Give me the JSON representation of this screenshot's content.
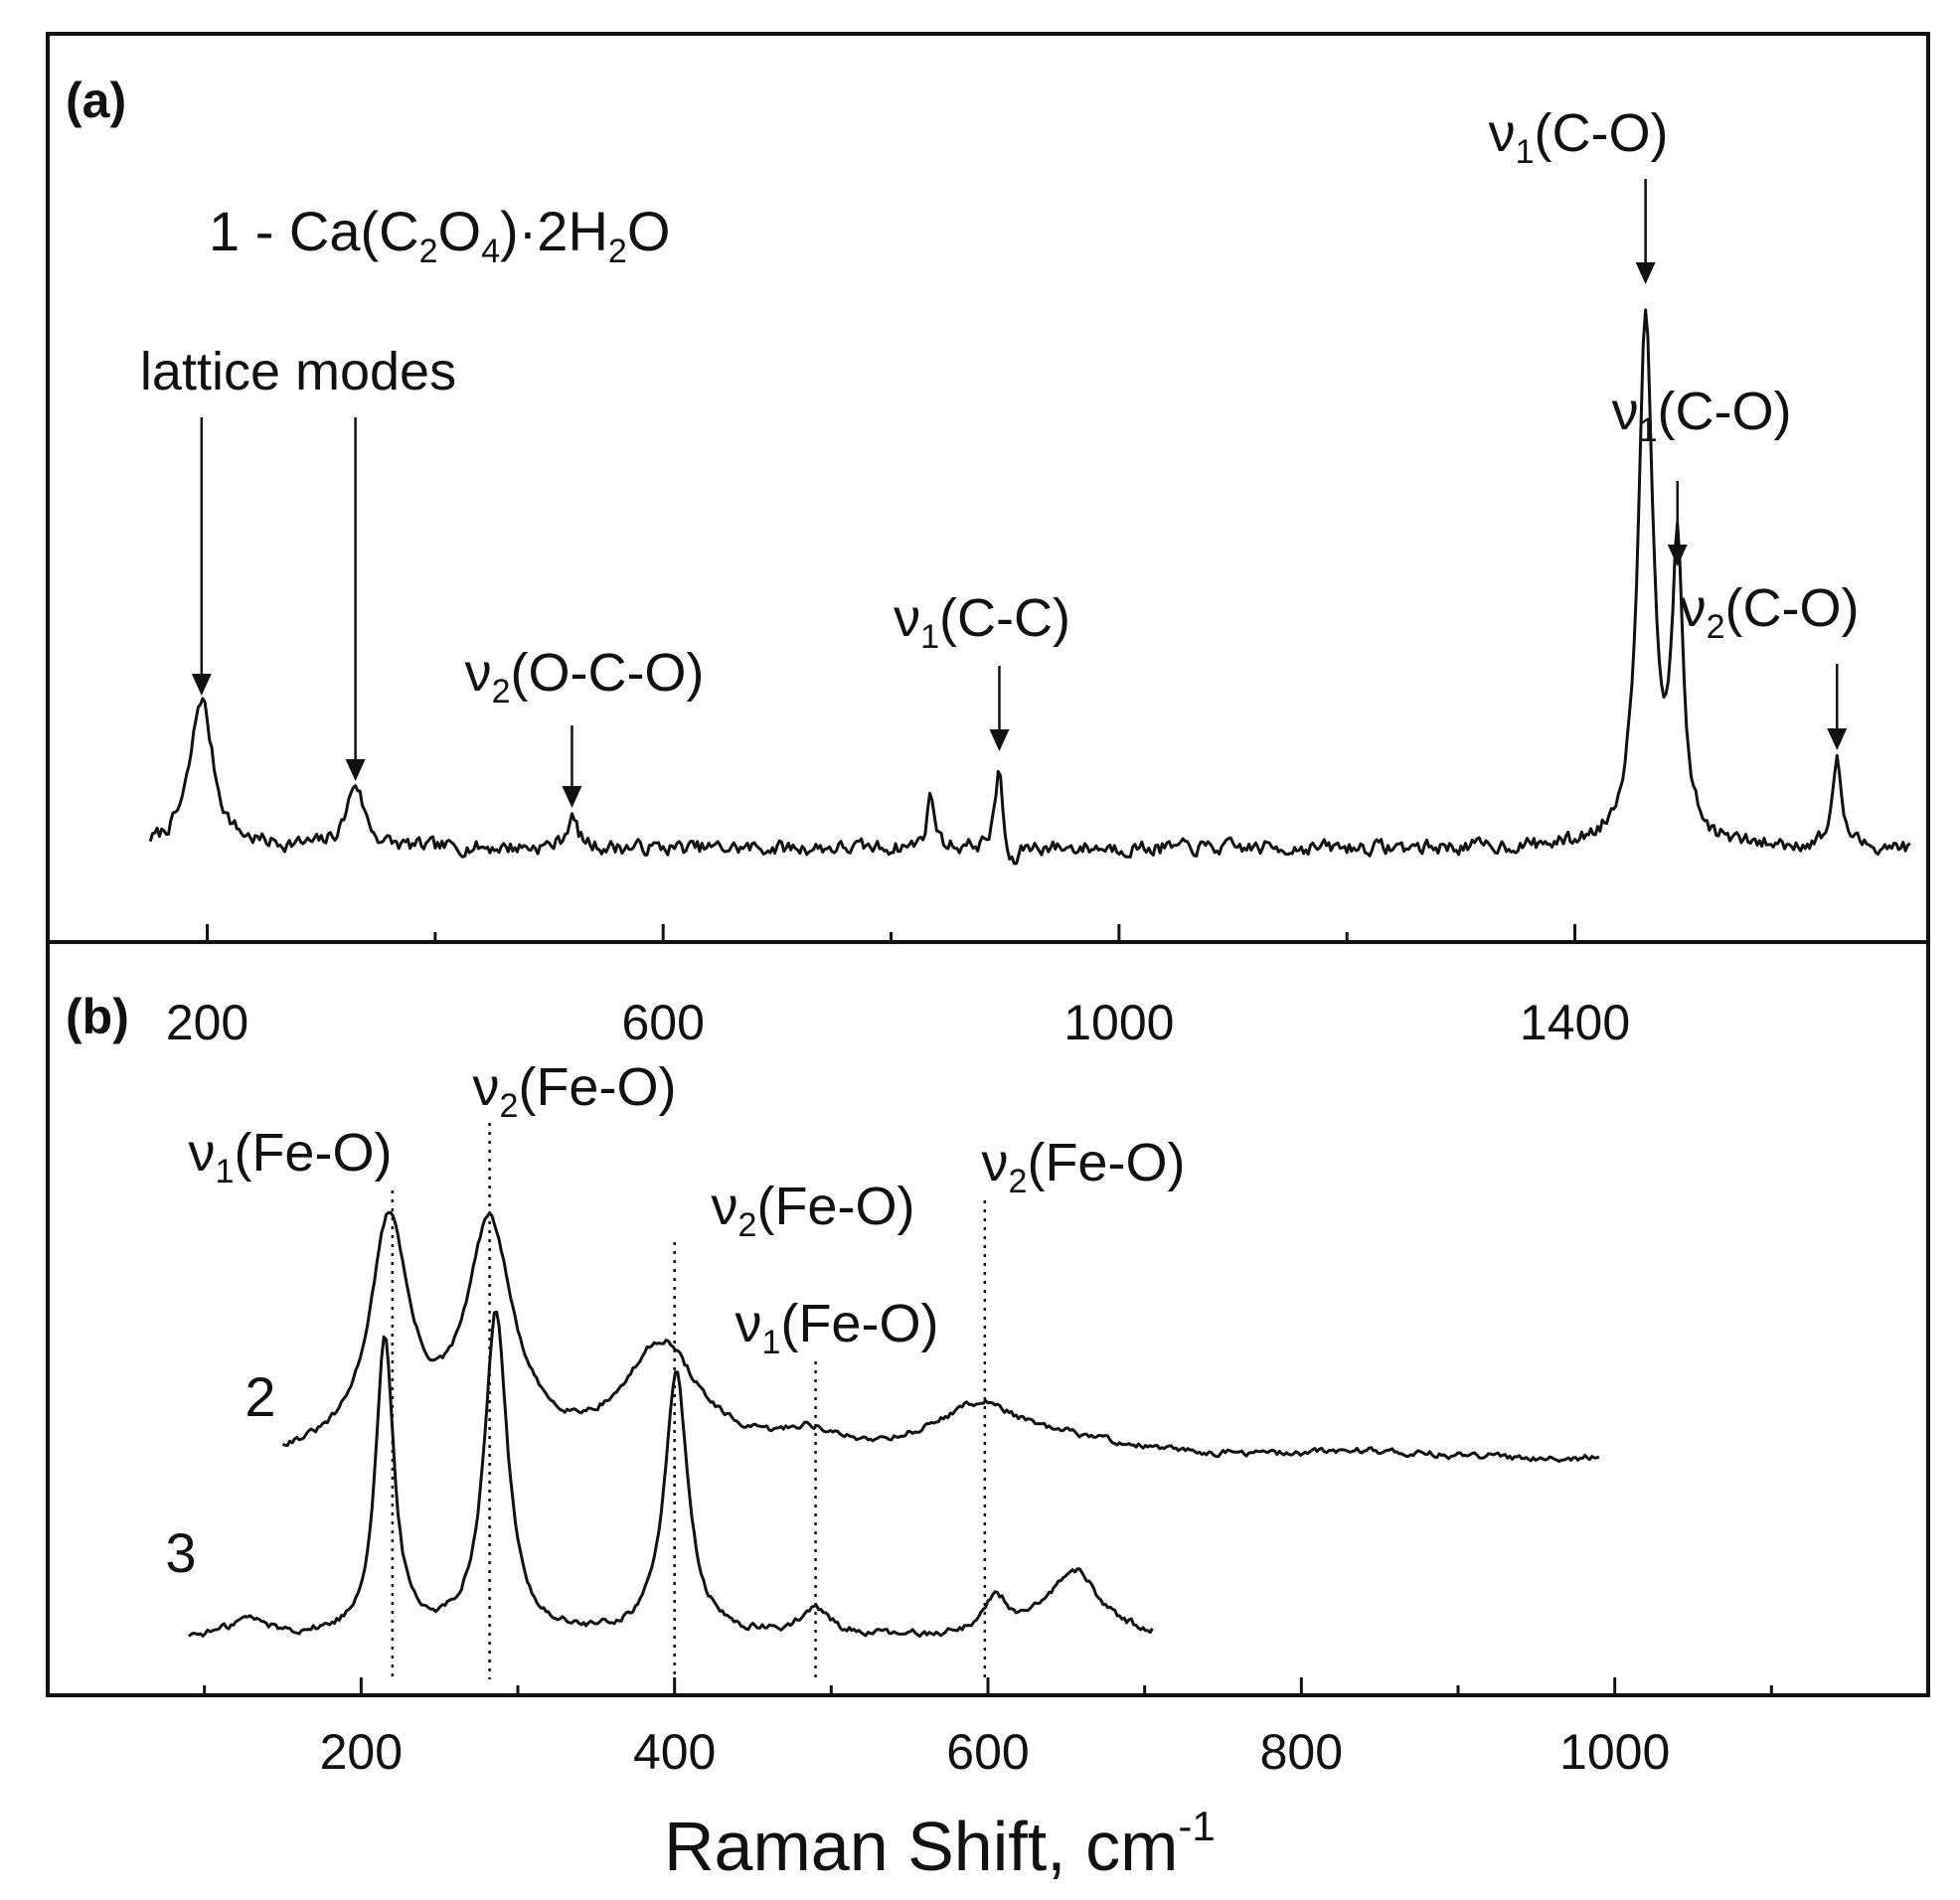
{
  "chart_data": [
    {
      "type": "line",
      "panel_label": "(a)",
      "sample_label": "1 - Ca(C2O4)·2H2O",
      "sample_label_parts": {
        "prefix": "1 - Ca(C",
        "sub1": "2",
        "mid": "O",
        "sub2": "4",
        "mid2": ")·2H",
        "sub3": "2",
        "suffix": "O"
      },
      "xlim": [
        60,
        1710
      ],
      "x_ticks_major": [
        200,
        600,
        1000,
        1400
      ],
      "x_ticks_minor": [
        400,
        800,
        1200
      ],
      "xlabel": "",
      "ylabel": "",
      "grid": false,
      "series": [
        {
          "baseline": 0.1,
          "noise": 0.03,
          "x_range": [
            150,
            1695
          ],
          "peaks": [
            {
              "x": 195,
              "height": 0.7,
              "width": 12
            },
            {
              "x": 330,
              "height": 0.3,
              "width": 9
            },
            {
              "x": 520,
              "height": 0.14,
              "width": 6
            },
            {
              "x": 835,
              "height": 0.25,
              "width": 4
            },
            {
              "x": 895,
              "height": 0.38,
              "width": 4
            },
            {
              "x": 1462,
              "height": 2.45,
              "width": 8
            },
            {
              "x": 1490,
              "height": 1.3,
              "width": 6
            },
            {
              "x": 1630,
              "height": 0.4,
              "width": 5
            }
          ]
        }
      ],
      "annotations": [
        {
          "base": "lattice modes",
          "sub": "",
          "tail": ""
        },
        {
          "base": "ν",
          "sub": "2",
          "tail": "(O-C-O)"
        },
        {
          "base": "ν",
          "sub": "1",
          "tail": "(C-C)"
        },
        {
          "base": "ν",
          "sub": "1",
          "tail": "(C-O)"
        },
        {
          "base": "ν",
          "sub": "1",
          "tail": "(C-O)"
        },
        {
          "base": "ν",
          "sub": "2",
          "tail": "(C-O)"
        }
      ]
    },
    {
      "type": "line",
      "panel_label": "(b)",
      "xlim": [
        0,
        1200
      ],
      "x_ticks_major": [
        200,
        400,
        600,
        800,
        1000
      ],
      "x_ticks_minor": [
        0,
        100,
        300,
        500,
        700,
        900,
        1100,
        1200
      ],
      "xlabel": "Raman Shift, cm",
      "xlabel_sup": "-1",
      "ylabel": "",
      "grid": false,
      "series": [
        {
          "name": "2",
          "baseline": 0.05,
          "noise": 0.012,
          "x_range": [
            150,
            990
          ],
          "peaks": [
            {
              "x": 218,
              "height": 1.0,
              "width": 15
            },
            {
              "x": 282,
              "height": 0.98,
              "width": 18
            },
            {
              "x": 392,
              "height": 0.48,
              "width": 28
            },
            {
              "x": 485,
              "height": 0.08,
              "width": 20
            },
            {
              "x": 595,
              "height": 0.22,
              "width": 35
            },
            {
              "x": 660,
              "height": 0.05,
              "width": 40
            },
            {
              "x": 840,
              "height": 0.03,
              "width": 40
            }
          ]
        },
        {
          "name": "3",
          "baseline": 0.06,
          "noise": 0.012,
          "x_range": [
            90,
            705
          ],
          "peaks": [
            {
              "x": 128,
              "height": 0.07,
              "width": 15
            },
            {
              "x": 215,
              "height": 1.15,
              "width": 7
            },
            {
              "x": 286,
              "height": 1.25,
              "width": 9
            },
            {
              "x": 401,
              "height": 1.02,
              "width": 9
            },
            {
              "x": 490,
              "height": 0.1,
              "width": 12
            },
            {
              "x": 605,
              "height": 0.14,
              "width": 9
            },
            {
              "x": 655,
              "height": 0.26,
              "width": 20
            }
          ]
        }
      ],
      "annotations": [
        {
          "base": "ν",
          "sub": "1",
          "tail": "(Fe-O)"
        },
        {
          "base": "ν",
          "sub": "2",
          "tail": "(Fe-O)"
        },
        {
          "base": "ν",
          "sub": "2",
          "tail": "(Fe-O)"
        },
        {
          "base": "ν",
          "sub": "1",
          "tail": "(Fe-O)"
        },
        {
          "base": "ν",
          "sub": "2",
          "tail": "(Fe-O)"
        }
      ],
      "guide_lines": [
        220,
        282,
        400,
        490,
        598
      ]
    }
  ]
}
